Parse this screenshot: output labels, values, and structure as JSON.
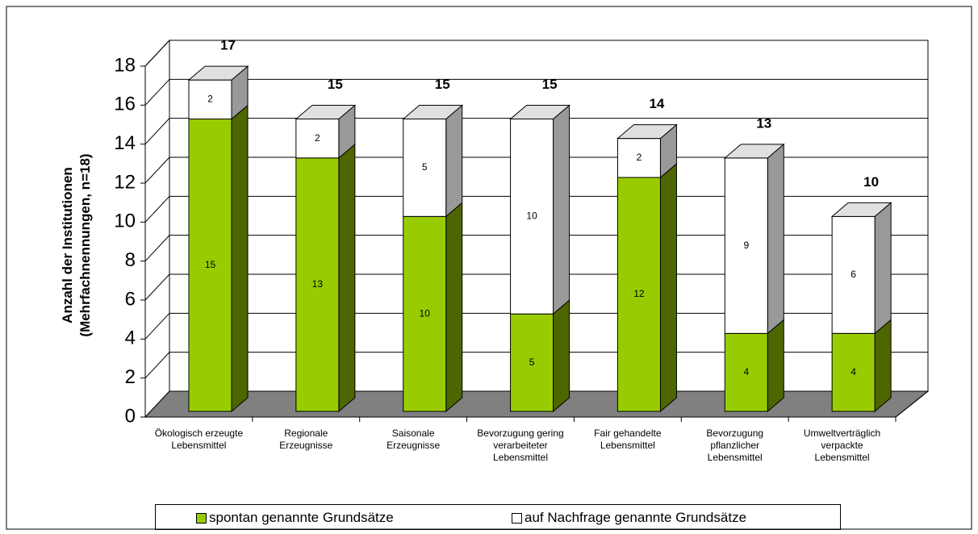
{
  "chart_data": {
    "type": "bar3d_stacked",
    "ylabel": "Anzahl der Institutionen\n(Mehrfachnennungen, n=18)",
    "categories": [
      "Ökologisch erzeugte\nLebensmittel",
      "Regionale\nErzeugnisse",
      "Saisonale\nErzeugnisse",
      "Bevorzugung gering\nverarbeiteter\nLebensmittel",
      "Fair gehandelte\nLebensmittel",
      "Bevorzugung\npflanzlicher\nLebensmittel",
      "Umweltverträglich\nverpackte\nLebensmittel"
    ],
    "series": [
      {
        "name": "spontan genannte Grundsätze",
        "color": "#99cc00",
        "values": [
          15,
          13,
          10,
          5,
          12,
          4,
          4
        ]
      },
      {
        "name": "auf Nachfrage genannte Grundsätze",
        "color": "#ffffff",
        "values": [
          2,
          2,
          5,
          10,
          2,
          9,
          6
        ]
      }
    ],
    "totals": [
      17,
      15,
      15,
      15,
      14,
      13,
      10
    ],
    "ylim": [
      0,
      18
    ],
    "yticks": [
      0,
      2,
      4,
      6,
      8,
      10,
      12,
      14,
      16,
      18
    ],
    "grid": true
  }
}
